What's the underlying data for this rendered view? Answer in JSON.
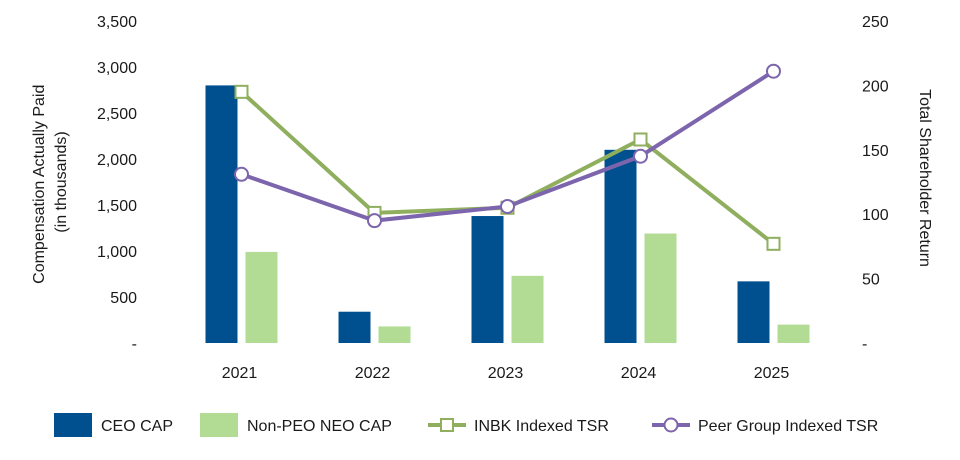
{
  "chart_data": {
    "type": "bar",
    "categories": [
      "2021",
      "2022",
      "2023",
      "2024",
      "2025"
    ],
    "series": [
      {
        "name": "CEO CAP",
        "type": "bar",
        "axis": "left",
        "color": "#004f8f",
        "values": [
          2800,
          340,
          1380,
          2100,
          670
        ]
      },
      {
        "name": "Non-PEO NEO CAP",
        "type": "bar",
        "axis": "left",
        "color": "#b2dc94",
        "values": [
          990,
          180,
          730,
          1190,
          200
        ]
      },
      {
        "name": "INBK Indexed TSR",
        "type": "line",
        "axis": "right",
        "color": "#8faf5f",
        "marker": "square",
        "values": [
          195,
          101,
          105,
          158,
          77
        ]
      },
      {
        "name": "Peer Group Indexed TSR",
        "type": "line",
        "axis": "right",
        "color": "#7d65ad",
        "marker": "circle",
        "values": [
          131,
          95,
          106,
          145,
          211
        ]
      }
    ],
    "y_left": {
      "label_lines": [
        "Compensation Actually Paid",
        "(in thousands)"
      ],
      "range": [
        0,
        3500
      ],
      "ticks": [
        0,
        500,
        1000,
        1500,
        2000,
        2500,
        3000,
        3500
      ],
      "tick_labels": [
        "-",
        "500",
        "1,000",
        "1,500",
        "2,000",
        "2,500",
        "3,000",
        "3,500"
      ]
    },
    "y_right": {
      "label": "Total Shareholder Return",
      "range": [
        0,
        250
      ],
      "ticks": [
        0,
        50,
        100,
        150,
        200,
        250
      ],
      "tick_labels": [
        "-",
        "50",
        "100",
        "150",
        "200",
        "250"
      ]
    },
    "grid": false,
    "legend_position": "bottom"
  }
}
